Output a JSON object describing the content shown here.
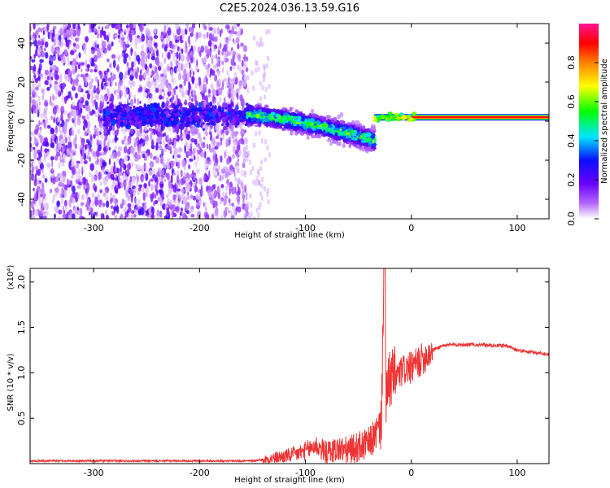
{
  "chart_data": [
    {
      "type": "heatmap",
      "title": "C2E5.2024.036.13.59.G16",
      "xlabel": "Height of straight line (km)",
      "ylabel": "Frequency (Hz)",
      "xlim": [
        -360,
        130
      ],
      "ylim": [
        -50,
        50
      ],
      "x_ticks": [
        -300,
        -200,
        -100,
        0,
        100
      ],
      "y_ticks": [
        -40,
        -20,
        0,
        20,
        40
      ],
      "colorbar": {
        "label": "Normalized spectral amplitude",
        "range": [
          0,
          1
        ],
        "ticks": [
          0.0,
          0.2,
          0.4,
          0.6,
          0.8
        ],
        "tick_labels": [
          "0.0",
          "0.2",
          "0.4",
          "0.6",
          "0.8"
        ]
      },
      "colormap": [
        "#ffffff",
        "#b266ff",
        "#6a00ff",
        "#0a10ff",
        "#00e5ff",
        "#00ff00",
        "#ffff00",
        "#ff7f00",
        "#ff0000",
        "#ff1493"
      ],
      "regions": [
        {
          "name": "noise",
          "x_range": [
            -360,
            -155
          ],
          "y_range": [
            -50,
            50
          ],
          "amplitude_max": 0.25
        },
        {
          "name": "band",
          "x_range": [
            -155,
            -35
          ],
          "center_y_start": 3,
          "center_y_end": -10,
          "amplitude_max": 0.5
        },
        {
          "name": "tone",
          "x_range": [
            -35,
            130
          ],
          "center_y": 2,
          "amplitude_max": 0.9
        }
      ]
    },
    {
      "type": "line",
      "title": "",
      "xlabel": "Height of straight line (km)",
      "ylabel": "SNR (10 * v/v)",
      "y_scale_note": "(x10⁴)",
      "xlim": [
        -360,
        130
      ],
      "ylim": [
        0,
        2.15
      ],
      "x_ticks": [
        -300,
        -200,
        -100,
        0,
        100
      ],
      "y_ticks": [
        0.5,
        1.0,
        1.5,
        2.0
      ],
      "y_tick_labels": [
        "0.5",
        "1.0",
        "1.5",
        "2.0"
      ],
      "color": "#ee3333",
      "series": [
        {
          "x": [
            -360,
            -300,
            -250,
            -200,
            -150,
            -130,
            -110,
            -100,
            -90,
            -80,
            -70,
            -60,
            -50,
            -40,
            -35,
            -30,
            -28,
            -26,
            -25,
            -24,
            -22,
            -20,
            -15,
            -10,
            -5,
            0,
            10,
            20,
            30,
            40,
            60,
            80,
            90,
            100,
            110,
            120,
            130
          ],
          "y": [
            0.03,
            0.03,
            0.03,
            0.03,
            0.03,
            0.06,
            0.1,
            0.14,
            0.2,
            0.12,
            0.16,
            0.14,
            0.18,
            0.22,
            0.3,
            0.4,
            0.55,
            2.15,
            1.45,
            0.7,
            0.8,
            0.95,
            0.95,
            1.0,
            1.05,
            1.05,
            1.15,
            1.25,
            1.3,
            1.31,
            1.31,
            1.3,
            1.3,
            1.25,
            1.23,
            1.22,
            1.2
          ]
        }
      ]
    }
  ]
}
